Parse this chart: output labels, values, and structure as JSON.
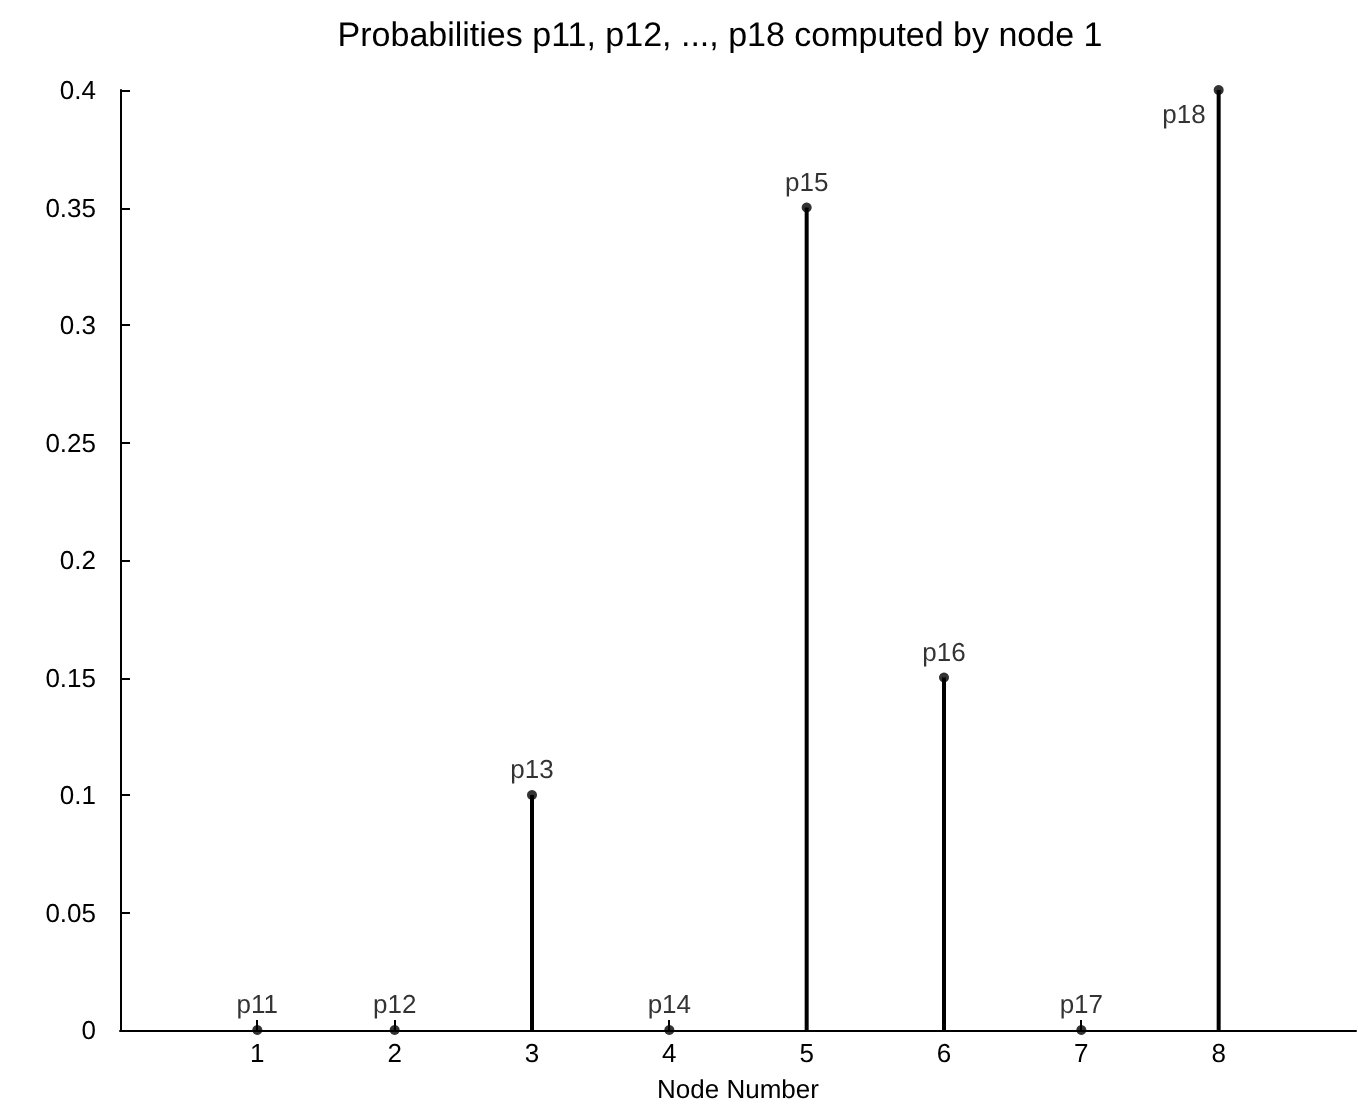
{
  "chart_data": {
    "type": "lollipop",
    "title": "Probabilities p11, p12, ..., p18 computed by node 1",
    "xlabel": "Node Number",
    "x": [
      1,
      2,
      3,
      4,
      5,
      6,
      7,
      8
    ],
    "values": [
      0,
      0,
      0.1,
      0,
      0.35,
      0.15,
      0,
      0.4
    ],
    "value_labels": [
      "p11",
      "p12",
      "p13",
      "p14",
      "p15",
      "p16",
      "p17",
      "p18"
    ],
    "color": "#000000",
    "marker": "circle",
    "xlim": [
      0,
      9
    ],
    "xticks": [
      1,
      2,
      3,
      4,
      5,
      6,
      7,
      8
    ],
    "ylim": [
      0,
      0.4
    ],
    "yticks": [
      0,
      0.05,
      0.1,
      0.15,
      0.2,
      0.25,
      0.3,
      0.35,
      0.4
    ],
    "grid": false
  }
}
